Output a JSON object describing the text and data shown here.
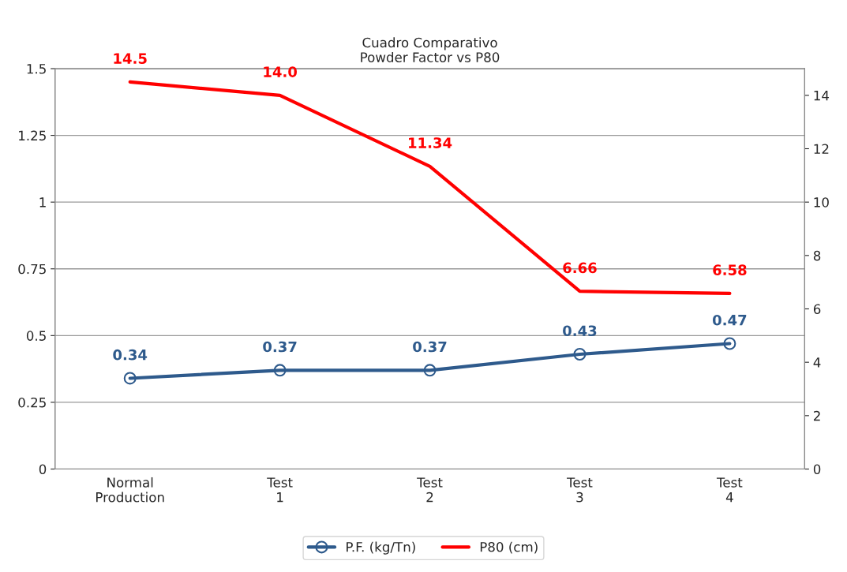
{
  "chart_data": {
    "type": "line",
    "title": "Cuadro Comparativo\nPowder Factor vs P80",
    "categories": [
      "Normal\nProduction",
      "Test\n1",
      "Test\n2",
      "Test\n3",
      "Test\n4"
    ],
    "series": [
      {
        "name": "P.F. (kg/Tn)",
        "color": "#2e5a8c",
        "values": [
          0.34,
          0.37,
          0.37,
          0.43,
          0.47
        ],
        "marker": "circle",
        "value_labels": [
          "0.34",
          "0.37",
          "0.37",
          "0.43",
          "0.47"
        ]
      },
      {
        "name": "P80 (cm)",
        "color": "#ff0000",
        "axis": "y2",
        "values": [
          14.5,
          14.0,
          11.34,
          6.66,
          6.58
        ],
        "marker": "none",
        "value_labels": [
          "14.5",
          "14.0",
          "11.34",
          "6.66",
          "6.58"
        ]
      }
    ],
    "ylim": [
      0,
      1.5
    ],
    "yticks": [
      0,
      0.25,
      0.5,
      0.75,
      1,
      1.25,
      1.5
    ],
    "y2lim": [
      0,
      15
    ],
    "y2ticks": [
      0,
      2,
      4,
      6,
      8,
      10,
      12,
      14
    ],
    "grid": "y",
    "legend": "bottom",
    "line_style": "solid"
  }
}
